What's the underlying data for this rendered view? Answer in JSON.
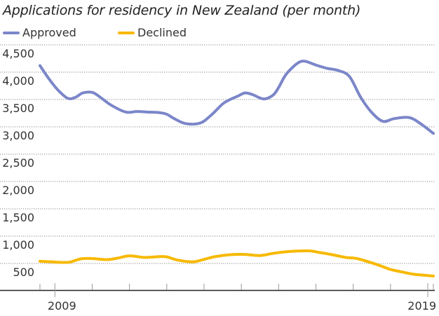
{
  "chart_data": {
    "type": "line",
    "title": "Applications for residency in New Zealand (per month)",
    "xlabel": "",
    "ylabel": "",
    "ylim": [
      0,
      4500
    ],
    "yticks": [
      500,
      1000,
      1500,
      2000,
      2500,
      3000,
      3500,
      4000,
      4500
    ],
    "ytick_labels": [
      "500",
      "1,000",
      "1,500",
      "2,000",
      "2,500",
      "3,000",
      "3,500",
      "4,000",
      "4,500"
    ],
    "xlim": [
      2008.6,
      2019.15
    ],
    "xtick_labels": [
      {
        "value": 2009,
        "label": "2009"
      },
      {
        "value": 2019,
        "label": "2019"
      }
    ],
    "minor_xticks": [
      2008.6,
      2010,
      2011,
      2012,
      2013,
      2014,
      2015,
      2016,
      2017,
      2018,
      2019.15
    ],
    "grid": "horizontal-dotted",
    "legend_position": "top-left",
    "series": [
      {
        "name": "Approved",
        "color": "#7b86c9",
        "x": [
          2008.6,
          2008.85,
          2009.1,
          2009.35,
          2009.55,
          2009.75,
          2010.0,
          2010.2,
          2010.5,
          2010.9,
          2011.2,
          2011.5,
          2011.8,
          2012.0,
          2012.2,
          2012.5,
          2012.9,
          2013.2,
          2013.5,
          2013.7,
          2013.9,
          2014.1,
          2014.3,
          2014.6,
          2014.85,
          2015.0,
          2015.2,
          2015.5,
          2015.7,
          2016.0,
          2016.3,
          2016.6,
          2016.9,
          2017.2,
          2017.5,
          2017.8,
          2018.1,
          2018.5,
          2018.8,
          2019.15
        ],
        "values": [
          4120,
          3870,
          3660,
          3520,
          3540,
          3620,
          3630,
          3550,
          3400,
          3270,
          3280,
          3270,
          3260,
          3230,
          3150,
          3060,
          3070,
          3220,
          3420,
          3500,
          3560,
          3620,
          3590,
          3510,
          3580,
          3720,
          3960,
          4160,
          4200,
          4130,
          4070,
          4030,
          3920,
          3540,
          3260,
          3100,
          3150,
          3170,
          3060,
          2880
        ]
      },
      {
        "name": "Declined",
        "color": "#f7b900",
        "x": [
          2008.6,
          2008.9,
          2009.2,
          2009.4,
          2009.7,
          2010.0,
          2010.4,
          2010.7,
          2011.0,
          2011.4,
          2011.8,
          2012.0,
          2012.3,
          2012.7,
          2013.0,
          2013.3,
          2013.7,
          2014.1,
          2014.5,
          2014.9,
          2015.3,
          2015.8,
          2016.1,
          2016.4,
          2016.8,
          2017.1,
          2017.5,
          2017.8,
          2018.0,
          2018.3,
          2018.6,
          2018.9,
          2019.15
        ],
        "values": [
          540,
          530,
          520,
          525,
          585,
          590,
          570,
          600,
          640,
          610,
          625,
          620,
          560,
          530,
          575,
          625,
          660,
          665,
          645,
          690,
          720,
          730,
          700,
          665,
          610,
          590,
          510,
          440,
          390,
          345,
          305,
          285,
          270
        ]
      }
    ]
  }
}
